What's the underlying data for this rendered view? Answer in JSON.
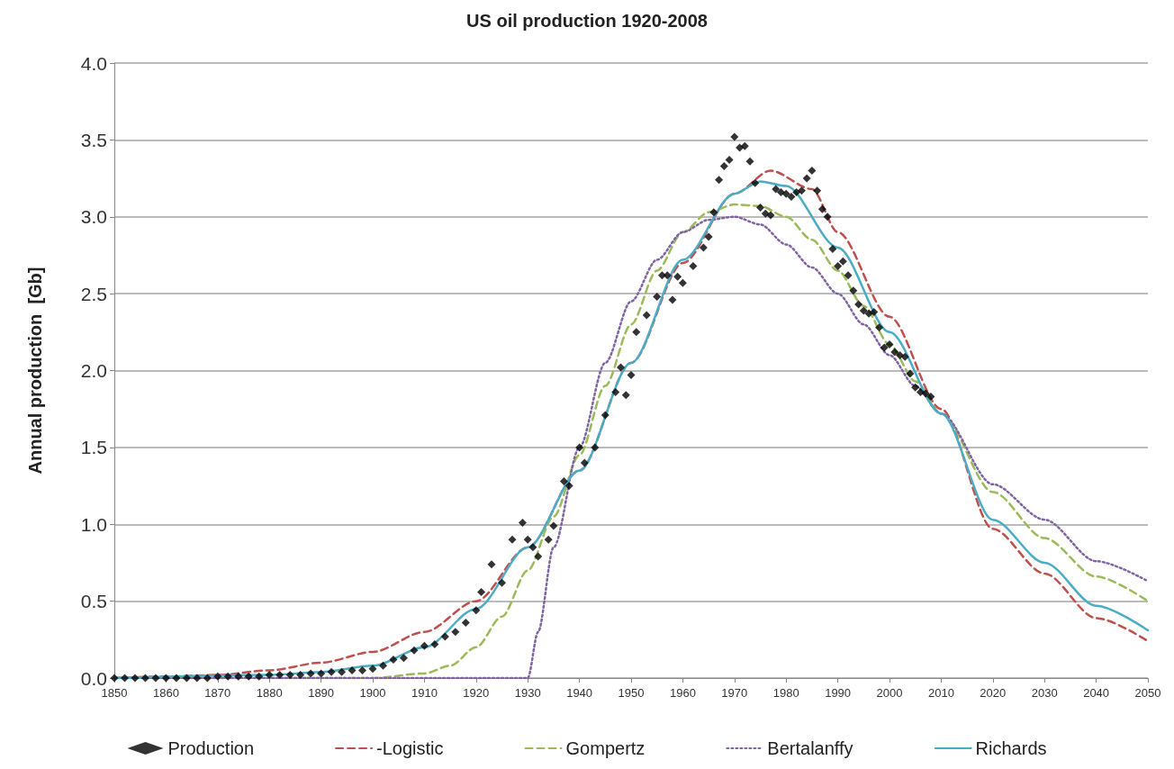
{
  "chart_data": {
    "type": "scatter",
    "title": "US oil production 1920-2008",
    "ylabel": "Annual production  [Gb]",
    "xlim": [
      1850,
      2050
    ],
    "xticks": [
      1850,
      1860,
      1870,
      1880,
      1890,
      1900,
      1910,
      1920,
      1930,
      1940,
      1950,
      1960,
      1970,
      1980,
      1990,
      2000,
      2010,
      2020,
      2030,
      2040,
      2050
    ],
    "ylim": [
      0,
      4
    ],
    "yticks": [
      {
        "value": 0,
        "label": "0.0"
      },
      {
        "value": 0.5,
        "label": "0.5"
      },
      {
        "value": 1,
        "label": "1.0"
      },
      {
        "value": 1.5,
        "label": "1.5"
      },
      {
        "value": 2,
        "label": "2.0"
      },
      {
        "value": 2.5,
        "label": "2.5"
      },
      {
        "value": 3,
        "label": "3.0"
      },
      {
        "value": 3.5,
        "label": "3.5"
      },
      {
        "value": 4,
        "label": "4.0"
      }
    ],
    "grid": "y",
    "legend": "bottom",
    "series": [
      {
        "name": "Production",
        "marker": "diamond",
        "color": "#000000",
        "x": [
          1850,
          1852,
          1854,
          1856,
          1858,
          1860,
          1862,
          1864,
          1866,
          1868,
          1870,
          1872,
          1874,
          1876,
          1878,
          1880,
          1882,
          1884,
          1886,
          1888,
          1890,
          1892,
          1894,
          1896,
          1898,
          1900,
          1902,
          1904,
          1906,
          1908,
          1910,
          1912,
          1914,
          1916,
          1918,
          1920,
          1921,
          1923,
          1925,
          1927,
          1929,
          1930,
          1931,
          1932,
          1934,
          1935,
          1937,
          1938,
          1940,
          1941,
          1943,
          1945,
          1947,
          1948,
          1949,
          1950,
          1951,
          1953,
          1955,
          1956,
          1957,
          1958,
          1959,
          1960,
          1962,
          1964,
          1965,
          1966,
          1967,
          1968,
          1969,
          1970,
          1971,
          1972,
          1973,
          1974,
          1975,
          1976,
          1977,
          1978,
          1979,
          1980,
          1981,
          1982,
          1983,
          1984,
          1985,
          1986,
          1987,
          1988,
          1989,
          1990,
          1991,
          1992,
          1993,
          1994,
          1995,
          1996,
          1997,
          1998,
          1999,
          2000,
          2001,
          2002,
          2003,
          2004,
          2005,
          2006,
          2007,
          2008
        ],
        "values": [
          0,
          0,
          0,
          0,
          0,
          0,
          0,
          0,
          0,
          0,
          0.01,
          0.01,
          0.01,
          0.01,
          0.01,
          0.02,
          0.02,
          0.02,
          0.02,
          0.03,
          0.03,
          0.04,
          0.04,
          0.05,
          0.05,
          0.06,
          0.08,
          0.12,
          0.13,
          0.18,
          0.21,
          0.22,
          0.27,
          0.3,
          0.36,
          0.44,
          0.56,
          0.74,
          0.62,
          0.9,
          1.01,
          0.9,
          0.85,
          0.79,
          0.9,
          0.99,
          1.28,
          1.25,
          1.5,
          1.4,
          1.5,
          1.71,
          1.86,
          2.02,
          1.84,
          1.97,
          2.25,
          2.36,
          2.48,
          2.62,
          2.62,
          2.46,
          2.61,
          2.57,
          2.68,
          2.8,
          2.87,
          3.03,
          3.24,
          3.33,
          3.37,
          3.52,
          3.45,
          3.46,
          3.36,
          3.22,
          3.06,
          3.02,
          3.01,
          3.18,
          3.16,
          3.15,
          3.13,
          3.16,
          3.17,
          3.25,
          3.3,
          3.17,
          3.05,
          3.0,
          2.79,
          2.68,
          2.71,
          2.62,
          2.52,
          2.43,
          2.39,
          2.37,
          2.38,
          2.28,
          2.15,
          2.17,
          2.12,
          2.1,
          2.09,
          1.98,
          1.89,
          1.86,
          1.85,
          1.83
        ]
      },
      {
        "name": "-Logistic",
        "type": "line",
        "marker": "none",
        "line_style": "dashed",
        "color": "#c0504d",
        "x": [
          1850,
          1860,
          1870,
          1880,
          1890,
          1900,
          1910,
          1920,
          1930,
          1940,
          1950,
          1960,
          1970,
          1977,
          1985,
          1990,
          2000,
          2010,
          2020,
          2030,
          2040,
          2050
        ],
        "values": [
          0.0,
          0.01,
          0.02,
          0.05,
          0.1,
          0.17,
          0.3,
          0.5,
          0.85,
          1.35,
          2.05,
          2.7,
          3.15,
          3.3,
          3.18,
          2.9,
          2.35,
          1.75,
          0.97,
          0.68,
          0.39,
          0.24
        ]
      },
      {
        "name": "Gompertz",
        "type": "line",
        "marker": "none",
        "line_style": "dashed",
        "color": "#9bbb59",
        "x": [
          1850,
          1900,
          1910,
          1915,
          1920,
          1925,
          1930,
          1935,
          1940,
          1945,
          1950,
          1955,
          1960,
          1965,
          1970,
          1975,
          1980,
          1985,
          1990,
          1995,
          2000,
          2005,
          2010,
          2020,
          2030,
          2040,
          2050
        ],
        "values": [
          0,
          0,
          0.03,
          0.08,
          0.2,
          0.4,
          0.7,
          1.05,
          1.45,
          1.9,
          2.3,
          2.65,
          2.9,
          3.03,
          3.08,
          3.07,
          3.0,
          2.85,
          2.65,
          2.42,
          2.17,
          1.93,
          1.72,
          1.21,
          0.91,
          0.66,
          0.5
        ]
      },
      {
        "name": "Bertalanffy",
        "type": "line",
        "marker": "none",
        "line_style": "dotted",
        "color": "#8064a2",
        "x": [
          1850,
          1930,
          1932,
          1935,
          1940,
          1945,
          1950,
          1955,
          1960,
          1965,
          1970,
          1975,
          1980,
          1985,
          1990,
          1995,
          2000,
          2005,
          2010,
          2020,
          2030,
          2040,
          2050
        ],
        "values": [
          0,
          0,
          0.3,
          0.85,
          1.5,
          2.05,
          2.45,
          2.72,
          2.9,
          2.98,
          3.0,
          2.95,
          2.82,
          2.67,
          2.5,
          2.3,
          2.1,
          1.9,
          1.72,
          1.26,
          1.03,
          0.76,
          0.63
        ]
      },
      {
        "name": "Richards",
        "type": "line",
        "marker": "none",
        "line_style": "solid",
        "color": "#4bacc6",
        "x": [
          1850,
          1880,
          1890,
          1900,
          1910,
          1920,
          1930,
          1940,
          1950,
          1960,
          1970,
          1975,
          1980,
          1990,
          2000,
          2010,
          2020,
          2030,
          2040,
          2050
        ],
        "values": [
          0,
          0.02,
          0.04,
          0.08,
          0.2,
          0.45,
          0.85,
          1.35,
          2.05,
          2.72,
          3.15,
          3.23,
          3.2,
          2.8,
          2.25,
          1.72,
          1.03,
          0.75,
          0.47,
          0.31
        ]
      }
    ]
  }
}
